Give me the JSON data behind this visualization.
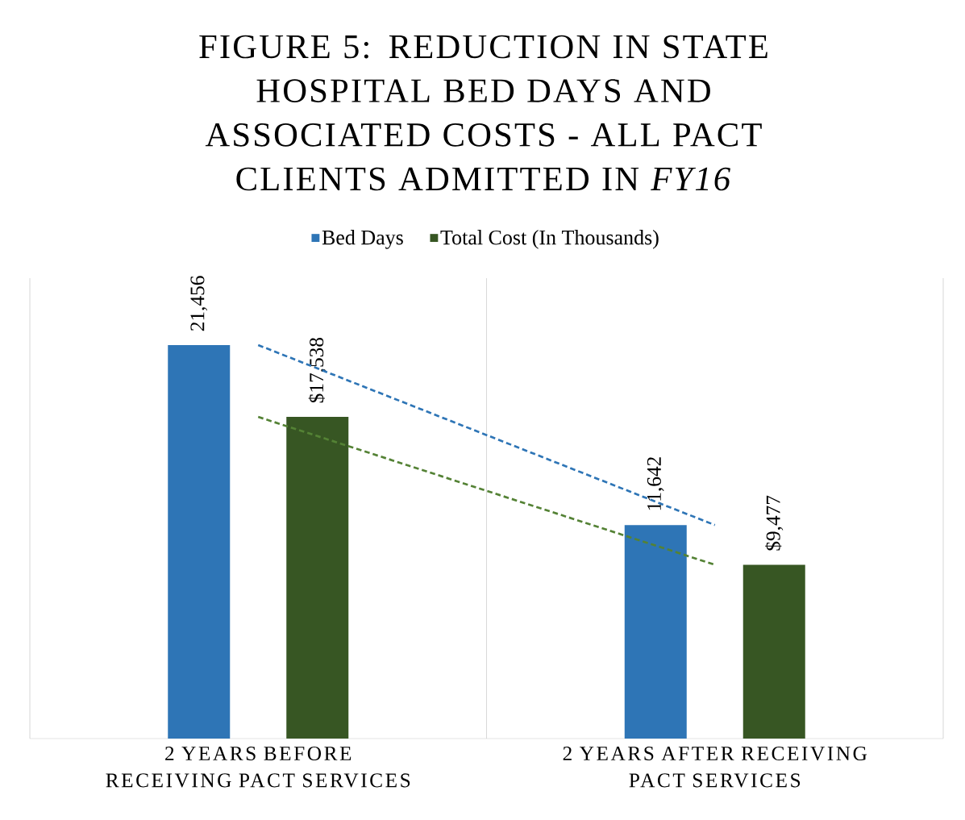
{
  "chart_data": {
    "type": "bar",
    "title": "FIGURE 5: REDUCTION IN STATE HOSPITAL BED DAYS AND ASSOCIATED COSTS - ALL PACT CLIENTS ADMITTED IN *FY16*",
    "categories": [
      "2 YEARS BEFORE RECEIVING PACT SERVICES",
      "2 YEARS AFTER RECEIVING PACT SERVICES"
    ],
    "series": [
      {
        "name": "Bed Days",
        "color": "#2e75b6",
        "values": [
          21456,
          11642
        ],
        "value_labels": [
          "21,456",
          "11,642"
        ]
      },
      {
        "name": "Total Cost (In Thousands)",
        "color": "#375623",
        "values": [
          17538,
          9477
        ],
        "value_labels": [
          "$17,538",
          "$9,477"
        ]
      },
      {
        "type": "line",
        "color": "#2e75b6",
        "line_style": "dashed",
        "values": [
          21456,
          11642
        ]
      },
      {
        "type": "line",
        "color": "#548235",
        "line_style": "dashed",
        "values": [
          17538,
          9477
        ]
      }
    ],
    "grid": "x",
    "legend": "top",
    "tick_labels": "x"
  }
}
